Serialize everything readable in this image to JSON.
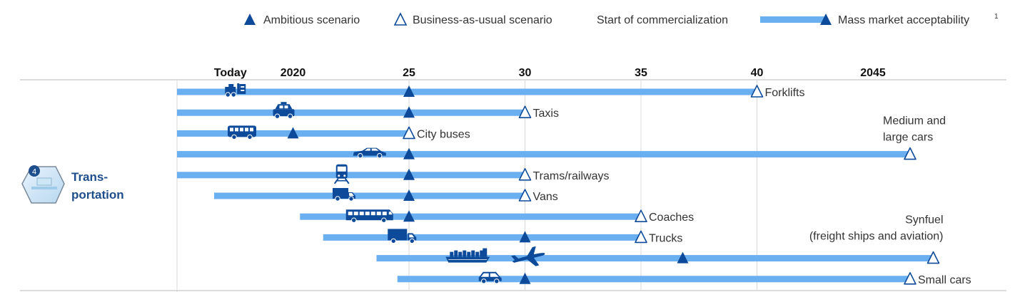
{
  "colors": {
    "bar": "#6aaff0",
    "marker": "#0d4a9a",
    "icon": "#0d4a9a",
    "grid": "#d8d8d8",
    "axis_line": "#c8c8c8",
    "sector_text": "#1f4e8c"
  },
  "legend": {
    "ambitious": "Ambitious scenario",
    "bau": "Business-as-usual scenario",
    "start": "Start of commercialization",
    "mass_market": "Mass market acceptability",
    "mass_market_sup": "1"
  },
  "sector": {
    "badge_number": "4",
    "label_line1": "Trans-",
    "label_line2": "portation",
    "icon": "transportation-badge-icon"
  },
  "chart_data": {
    "type": "timeline",
    "x_range": [
      2014.8,
      2048.5
    ],
    "ticks": [
      {
        "label": "Today",
        "year": 2017.3,
        "gridline": false
      },
      {
        "label": "2020",
        "year": 2020,
        "gridline": false
      },
      {
        "label": "25",
        "year": 2025,
        "gridline": true
      },
      {
        "label": "30",
        "year": 2030,
        "gridline": true
      },
      {
        "label": "35",
        "year": 2035,
        "gridline": true
      },
      {
        "label": "40",
        "year": 2040,
        "gridline": true
      },
      {
        "label": "2045",
        "year": 2045,
        "gridline": false
      }
    ],
    "rows": [
      {
        "name": "forklifts",
        "label_lines": [
          "Forklifts"
        ],
        "start": 2015,
        "ambitious": 2025,
        "bau": 2040,
        "bar_end": 2040,
        "icon": "forklift-icon",
        "icon_year": 2017.5,
        "label_pos": "right"
      },
      {
        "name": "taxis",
        "label_lines": [
          "Taxis"
        ],
        "start": 2015,
        "ambitious": 2025,
        "bau": 2030,
        "bar_end": 2030,
        "icon": "taxi-icon",
        "icon_year": 2019.6,
        "label_pos": "right"
      },
      {
        "name": "city-buses",
        "label_lines": [
          "City buses"
        ],
        "start": 2015,
        "ambitious": 2020,
        "bau": 2025,
        "bar_end": 2025,
        "icon": "city-bus-icon",
        "icon_year": 2017.8,
        "label_pos": "right"
      },
      {
        "name": "medium-large-cars",
        "label_lines": [
          "Medium and",
          "large cars"
        ],
        "start": 2015,
        "ambitious": 2025,
        "bau": 2046.6,
        "bar_end": 2046.6,
        "icon": "car-icon",
        "icon_year": 2023.3,
        "label_pos": "above"
      },
      {
        "name": "trams-railways",
        "label_lines": [
          "Trams/railways"
        ],
        "start": 2015,
        "ambitious": 2025,
        "bau": 2030,
        "bar_end": 2030,
        "icon": "tram-icon",
        "icon_year": 2022.1,
        "label_pos": "right"
      },
      {
        "name": "vans",
        "label_lines": [
          "Vans"
        ],
        "start": 2016.6,
        "ambitious": 2025,
        "bau": 2030,
        "bar_end": 2030,
        "icon": "van-icon",
        "icon_year": 2022.2,
        "label_pos": "right"
      },
      {
        "name": "coaches",
        "label_lines": [
          "Coaches"
        ],
        "start": 2020.3,
        "ambitious": 2025,
        "bau": 2035,
        "bar_end": 2035,
        "icon": "coach-icon",
        "icon_year": 2023.3,
        "label_pos": "right"
      },
      {
        "name": "trucks",
        "label_lines": [
          "Trucks"
        ],
        "start": 2021.3,
        "ambitious": 2030,
        "bau": 2035,
        "bar_end": 2035,
        "icon": "truck-icon",
        "icon_year": 2024.7,
        "label_pos": "right"
      },
      {
        "name": "synfuel",
        "label_lines": [
          "Synfuel",
          "(freight ships and aviation)"
        ],
        "start": 2023.6,
        "ambitious": 2036.8,
        "bau": 2047.6,
        "bar_end": 2047.6,
        "icon": "ship-and-plane-icon",
        "icon_year": 2027.5,
        "label_pos": "above-right"
      },
      {
        "name": "small-cars",
        "label_lines": [
          "Small cars"
        ],
        "start": 2024.5,
        "ambitious": 2030,
        "bau": 2046.6,
        "bar_end": 2046.6,
        "icon": "small-car-icon",
        "icon_year": 2028.5,
        "label_pos": "right"
      }
    ]
  }
}
